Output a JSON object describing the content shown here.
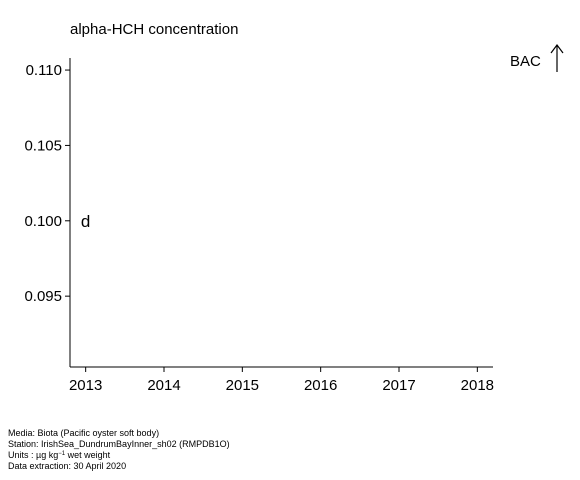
{
  "chart_data": {
    "type": "scatter",
    "title": "alpha-HCH concentration",
    "xlabel": "",
    "ylabel": "",
    "xlim": [
      2012.8,
      2018.2
    ],
    "ylim": [
      0.0903,
      0.1108
    ],
    "x_ticks": [
      "2013",
      "2014",
      "2015",
      "2016",
      "2017",
      "2018"
    ],
    "y_ticks": [
      "0.110",
      "0.105",
      "0.100",
      "0.095"
    ],
    "points": [
      {
        "x": 2013,
        "y": 0.1,
        "label": "d"
      }
    ],
    "annotation": {
      "text": "BAC",
      "arrow": "up"
    },
    "grid": false
  },
  "footer": {
    "media": "Media: Biota (Pacific oyster soft body)",
    "station": "Station: IrishSea_DundrumBayInner_sh02 (RMPDB1O)",
    "units_prefix": "Units : ",
    "units_unit": "µg kg",
    "units_exp": "−1",
    "units_suffix": " wet weight",
    "extraction": "Data extraction: 30 April 2020"
  }
}
